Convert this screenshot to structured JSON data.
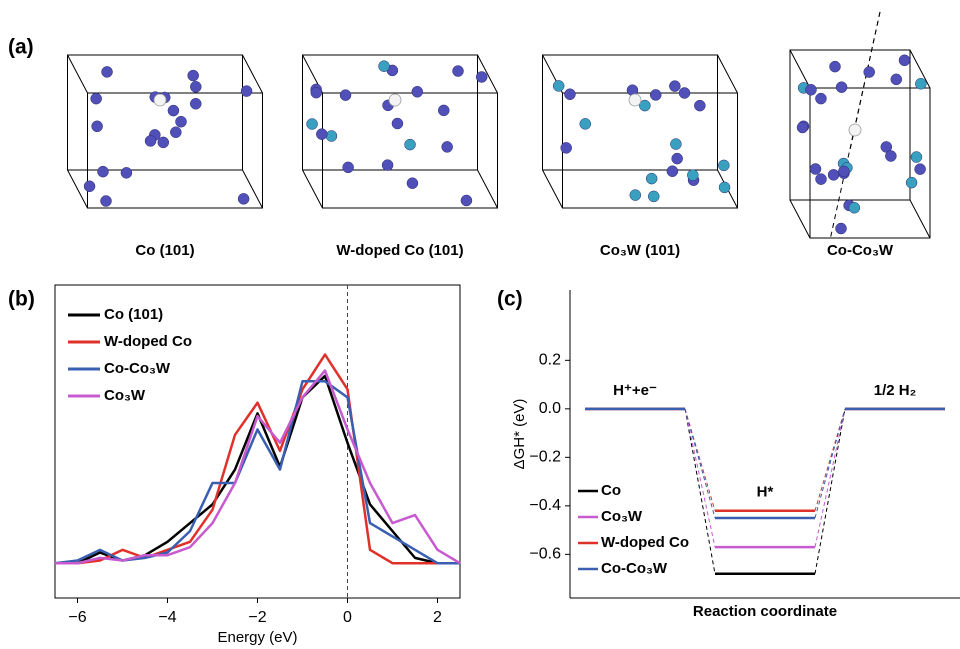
{
  "panels": {
    "a": {
      "label": "(a)",
      "structures": [
        "Co (101)",
        "W-doped Co (101)",
        "Co₃W (101)",
        "Co-Co₃W"
      ]
    }
  },
  "chart_data": [
    {
      "type": "line",
      "panel_label": "(b)",
      "xlabel": "Energy (eV)",
      "x": [
        -6.5,
        -6,
        -5.5,
        -5,
        -4.5,
        -4,
        -3.5,
        -3,
        -2.5,
        -2,
        -1.5,
        -1,
        -0.5,
        0,
        0.5,
        1,
        1.5,
        2,
        2.5
      ],
      "xlim": [
        -6.5,
        2.5
      ],
      "xticks": [
        {
          "value": -6,
          "label": "−6"
        },
        {
          "value": -4,
          "label": "−4"
        },
        {
          "value": -2,
          "label": "−2"
        },
        0,
        2
      ],
      "ylim": [
        -0.13,
        1.04
      ],
      "vline": 0,
      "legend": "upper left",
      "series": [
        {
          "name": "Co (101)",
          "color": "#000000",
          "values": [
            0,
            0,
            0.04,
            0.01,
            0.03,
            0.08,
            0.15,
            0.22,
            0.35,
            0.56,
            0.36,
            0.62,
            0.7,
            0.45,
            0.22,
            0.12,
            0.02,
            0,
            0
          ]
        },
        {
          "name": "W-doped Co",
          "color": "#e0302a",
          "values": [
            0,
            0,
            0.01,
            0.05,
            0.02,
            0.05,
            0.08,
            0.2,
            0.48,
            0.6,
            0.42,
            0.65,
            0.78,
            0.65,
            0.05,
            0,
            0,
            0,
            0
          ]
        },
        {
          "name": "Co-Co₃W",
          "color": "#3a5fb0",
          "values": [
            0,
            0.01,
            0.05,
            0.01,
            0.02,
            0.04,
            0.12,
            0.3,
            0.3,
            0.5,
            0.35,
            0.68,
            0.68,
            0.62,
            0.15,
            0.1,
            0.05,
            0,
            0
          ]
        },
        {
          "name": "Co₃W",
          "color": "#c85ad0",
          "values": [
            0,
            0,
            0.02,
            0.01,
            0.03,
            0.03,
            0.06,
            0.15,
            0.3,
            0.55,
            0.45,
            0.62,
            0.72,
            0.5,
            0.3,
            0.15,
            0.18,
            0.05,
            0
          ]
        }
      ]
    },
    {
      "type": "level",
      "panel_label": "(c)",
      "ylabel": "ΔGH* (eV)",
      "xlabel": "Reaction coordinate",
      "categories": [
        "H⁺+e⁻",
        "H*",
        "1/2 H₂"
      ],
      "ylim": [
        -0.78,
        0.49
      ],
      "yticks": [
        0.2,
        {
          "value": 0,
          "label": "0.0"
        },
        {
          "value": -0.2,
          "label": "−0.2"
        },
        {
          "value": -0.4,
          "label": "−0.4"
        },
        {
          "value": -0.6,
          "label": "−0.6"
        }
      ],
      "legend": "lower left",
      "series": [
        {
          "name": "Co",
          "color": "#000000",
          "values": [
            0,
            -0.68,
            0
          ]
        },
        {
          "name": "Co₃W",
          "color": "#c85ad0",
          "values": [
            0,
            -0.57,
            0
          ]
        },
        {
          "name": "W-doped Co",
          "color": "#e0302a",
          "values": [
            0,
            -0.42,
            0
          ]
        },
        {
          "name": "Co-Co₃W",
          "color": "#3a5fb0",
          "values": [
            0,
            -0.45,
            0
          ]
        }
      ]
    }
  ]
}
